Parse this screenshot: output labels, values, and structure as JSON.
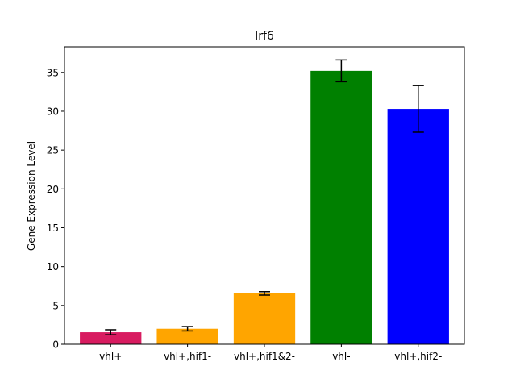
{
  "chart_data": {
    "type": "bar",
    "title": "Irf6",
    "xlabel": "",
    "ylabel": "Gene Expression Level",
    "categories": [
      "vhl+",
      "vhl+,hif1-",
      "vhl+,hif1&2-",
      "vhl-",
      "vhl+,hif2-"
    ],
    "values": [
      1.55,
      2.0,
      6.55,
      35.2,
      30.3
    ],
    "errors": [
      0.32,
      0.28,
      0.22,
      1.4,
      3.0
    ],
    "colors": [
      "#d81b60",
      "#ffa500",
      "#ffa500",
      "#008000",
      "#0000ff"
    ],
    "ylim": [
      0,
      38.3
    ],
    "yticks": [
      0,
      5,
      10,
      15,
      20,
      25,
      30,
      35
    ],
    "grid": false
  }
}
